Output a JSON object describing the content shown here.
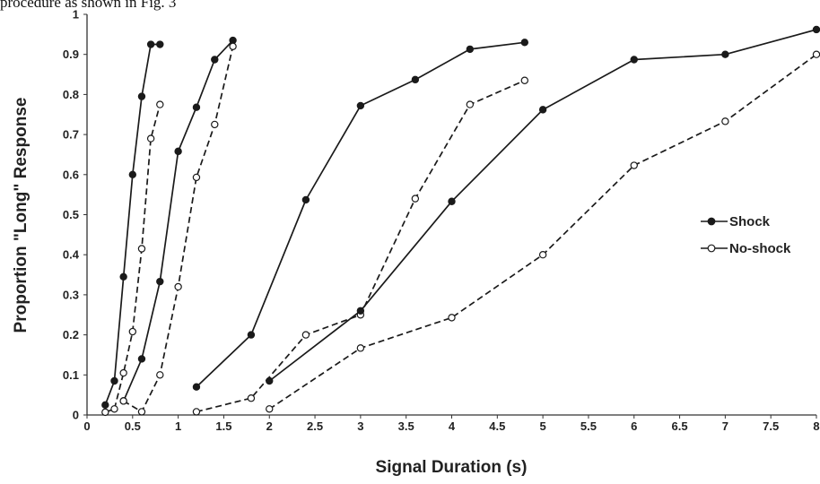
{
  "header": {
    "fragment_text": "procedure as shown in Fig. 3"
  },
  "chart_data": {
    "type": "line",
    "title": "",
    "xlabel": "Signal Duration (s)",
    "ylabel": "Proportion \"Long\" Response",
    "xlim": [
      0,
      8
    ],
    "ylim": [
      0,
      1
    ],
    "xticks": [
      "0",
      "0.5",
      "1",
      "1.5",
      "2",
      "2.5",
      "3",
      "3.5",
      "4",
      "4.5",
      "5",
      "5.5",
      "6",
      "6.5",
      "7",
      "7.5",
      "8"
    ],
    "yticks": [
      "0",
      "0.1",
      "0.2",
      "0.3",
      "0.4",
      "0.5",
      "0.6",
      "0.7",
      "0.8",
      "0.9",
      "1"
    ],
    "grid": false,
    "legend": {
      "placement": "right",
      "entries": [
        "Shock",
        "No-shock"
      ]
    },
    "series": [
      {
        "name": "Shock",
        "group": 1,
        "marker": "filled",
        "dash": "solid",
        "x": [
          0.2,
          0.3,
          0.4,
          0.5,
          0.6,
          0.7,
          0.8
        ],
        "y": [
          0.025,
          0.085,
          0.345,
          0.6,
          0.795,
          0.925,
          0.925
        ]
      },
      {
        "name": "No-shock",
        "group": 1,
        "marker": "open",
        "dash": "dashed",
        "x": [
          0.2,
          0.3,
          0.4,
          0.5,
          0.6,
          0.7,
          0.8
        ],
        "y": [
          0.007,
          0.015,
          0.105,
          0.208,
          0.415,
          0.69,
          0.775
        ]
      },
      {
        "name": "Shock",
        "group": 2,
        "marker": "filled",
        "dash": "solid",
        "x": [
          0.4,
          0.6,
          0.8,
          1.0,
          1.2,
          1.4,
          1.6
        ],
        "y": [
          0.035,
          0.14,
          0.333,
          0.658,
          0.768,
          0.887,
          0.935
        ]
      },
      {
        "name": "No-shock",
        "group": 2,
        "marker": "open",
        "dash": "dashed",
        "x": [
          0.4,
          0.6,
          0.8,
          1.0,
          1.2,
          1.4,
          1.6
        ],
        "y": [
          0.035,
          0.008,
          0.1,
          0.32,
          0.593,
          0.725,
          0.92
        ]
      },
      {
        "name": "Shock",
        "group": 3,
        "marker": "filled",
        "dash": "solid",
        "x": [
          1.2,
          1.8,
          2.4,
          3.0,
          3.6,
          4.2,
          4.8
        ],
        "y": [
          0.07,
          0.2,
          0.537,
          0.772,
          0.837,
          0.913,
          0.93
        ]
      },
      {
        "name": "No-shock",
        "group": 3,
        "marker": "open",
        "dash": "dashed",
        "x": [
          1.2,
          1.8,
          2.4,
          3.0,
          3.6,
          4.2,
          4.8
        ],
        "y": [
          0.008,
          0.042,
          0.2,
          0.25,
          0.54,
          0.775,
          0.835
        ]
      },
      {
        "name": "Shock",
        "group": 4,
        "marker": "filled",
        "dash": "solid",
        "x": [
          2,
          3,
          4,
          5,
          6,
          7,
          8
        ],
        "y": [
          0.085,
          0.26,
          0.533,
          0.762,
          0.887,
          0.9,
          0.962
        ]
      },
      {
        "name": "No-shock",
        "group": 4,
        "marker": "open",
        "dash": "dashed",
        "x": [
          2,
          3,
          4,
          5,
          6,
          7,
          8
        ],
        "y": [
          0.015,
          0.167,
          0.243,
          0.4,
          0.623,
          0.733,
          0.9
        ]
      }
    ]
  }
}
